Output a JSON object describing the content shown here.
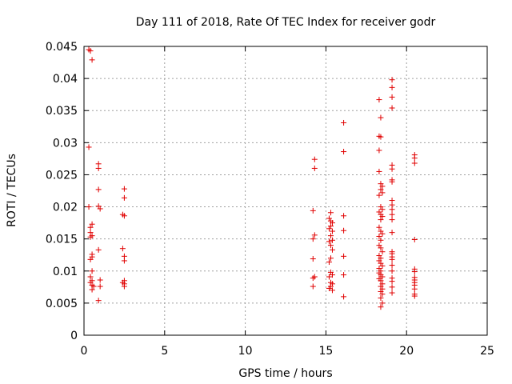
{
  "chart_data": {
    "type": "scatter",
    "title": "Day 111 of 2018, Rate Of TEC Index for receiver godr",
    "xlabel": "GPS time / hours",
    "ylabel": "ROTI / TECUs",
    "xlim": [
      0,
      25
    ],
    "ylim": [
      0,
      0.045
    ],
    "xticks": [
      0,
      5,
      10,
      15,
      20,
      25
    ],
    "xtick_labels": [
      "0",
      "5",
      "10",
      "15",
      "20",
      "25"
    ],
    "yticks": [
      0,
      0.005,
      0.01,
      0.015,
      0.02,
      0.025,
      0.03,
      0.035,
      0.04,
      0.045
    ],
    "ytick_labels": [
      "0",
      "0.005",
      "0.01",
      "0.015",
      "0.02",
      "0.025",
      "0.03",
      "0.035",
      "0.04",
      "0.045"
    ],
    "grid": true,
    "marker": "+",
    "color": "#e00000",
    "series": [
      {
        "name": "ROTI",
        "points": [
          [
            0.3,
            0.0445
          ],
          [
            0.4,
            0.0443
          ],
          [
            0.5,
            0.0429
          ],
          [
            0.3,
            0.0293
          ],
          [
            0.3,
            0.02
          ],
          [
            0.4,
            0.0168
          ],
          [
            0.4,
            0.016
          ],
          [
            0.5,
            0.0173
          ],
          [
            0.5,
            0.0155
          ],
          [
            0.4,
            0.0153
          ],
          [
            0.5,
            0.0126
          ],
          [
            0.5,
            0.0122
          ],
          [
            0.4,
            0.0118
          ],
          [
            0.5,
            0.01
          ],
          [
            0.4,
            0.0091
          ],
          [
            0.5,
            0.0085
          ],
          [
            0.4,
            0.0082
          ],
          [
            0.5,
            0.0078
          ],
          [
            0.6,
            0.0076
          ],
          [
            0.5,
            0.0071
          ],
          [
            0.9,
            0.0267
          ],
          [
            0.9,
            0.026
          ],
          [
            0.9,
            0.0227
          ],
          [
            0.9,
            0.0201
          ],
          [
            1.0,
            0.0197
          ],
          [
            0.9,
            0.0133
          ],
          [
            1.0,
            0.0086
          ],
          [
            1.0,
            0.0076
          ],
          [
            0.9,
            0.0054
          ],
          [
            2.5,
            0.0228
          ],
          [
            2.5,
            0.0214
          ],
          [
            2.4,
            0.0188
          ],
          [
            2.5,
            0.0186
          ],
          [
            2.4,
            0.0135
          ],
          [
            2.5,
            0.0123
          ],
          [
            2.5,
            0.0116
          ],
          [
            2.5,
            0.0085
          ],
          [
            2.4,
            0.0082
          ],
          [
            2.5,
            0.008
          ],
          [
            2.5,
            0.0076
          ],
          [
            14.3,
            0.0274
          ],
          [
            14.3,
            0.026
          ],
          [
            14.2,
            0.0194
          ],
          [
            14.3,
            0.0156
          ],
          [
            14.2,
            0.015
          ],
          [
            14.2,
            0.0119
          ],
          [
            14.3,
            0.0091
          ],
          [
            14.2,
            0.0089
          ],
          [
            14.2,
            0.0076
          ],
          [
            15.3,
            0.0191
          ],
          [
            15.2,
            0.0182
          ],
          [
            15.3,
            0.0178
          ],
          [
            15.4,
            0.0175
          ],
          [
            15.3,
            0.017
          ],
          [
            15.2,
            0.0166
          ],
          [
            15.4,
            0.0162
          ],
          [
            15.3,
            0.0155
          ],
          [
            15.4,
            0.0148
          ],
          [
            15.2,
            0.0146
          ],
          [
            15.3,
            0.014
          ],
          [
            15.4,
            0.0133
          ],
          [
            15.3,
            0.012
          ],
          [
            15.2,
            0.0114
          ],
          [
            15.3,
            0.0098
          ],
          [
            15.4,
            0.0094
          ],
          [
            15.2,
            0.0091
          ],
          [
            15.3,
            0.0082
          ],
          [
            15.4,
            0.008
          ],
          [
            15.3,
            0.0076
          ],
          [
            15.2,
            0.0073
          ],
          [
            15.4,
            0.007
          ],
          [
            16.1,
            0.0331
          ],
          [
            16.1,
            0.0286
          ],
          [
            16.1,
            0.0186
          ],
          [
            16.1,
            0.0163
          ],
          [
            16.1,
            0.0123
          ],
          [
            16.1,
            0.0094
          ],
          [
            16.1,
            0.006
          ],
          [
            18.3,
            0.0367
          ],
          [
            18.4,
            0.0339
          ],
          [
            18.3,
            0.031
          ],
          [
            18.4,
            0.0309
          ],
          [
            18.3,
            0.0288
          ],
          [
            18.3,
            0.0255
          ],
          [
            18.4,
            0.0236
          ],
          [
            18.5,
            0.0232
          ],
          [
            18.4,
            0.0227
          ],
          [
            18.5,
            0.0222
          ],
          [
            18.3,
            0.0218
          ],
          [
            18.4,
            0.02
          ],
          [
            18.5,
            0.0196
          ],
          [
            18.3,
            0.0192
          ],
          [
            18.4,
            0.0188
          ],
          [
            18.5,
            0.0185
          ],
          [
            18.4,
            0.018
          ],
          [
            18.3,
            0.0168
          ],
          [
            18.4,
            0.0162
          ],
          [
            18.5,
            0.0158
          ],
          [
            18.3,
            0.0154
          ],
          [
            18.4,
            0.0148
          ],
          [
            18.3,
            0.014
          ],
          [
            18.4,
            0.0136
          ],
          [
            18.5,
            0.013
          ],
          [
            18.3,
            0.0124
          ],
          [
            18.4,
            0.012
          ],
          [
            18.3,
            0.0116
          ],
          [
            18.4,
            0.0112
          ],
          [
            18.5,
            0.0108
          ],
          [
            18.3,
            0.0104
          ],
          [
            18.4,
            0.01
          ],
          [
            18.3,
            0.0097
          ],
          [
            18.4,
            0.0094
          ],
          [
            18.5,
            0.0091
          ],
          [
            18.3,
            0.0088
          ],
          [
            18.4,
            0.0085
          ],
          [
            18.5,
            0.008
          ],
          [
            18.4,
            0.0076
          ],
          [
            18.5,
            0.0072
          ],
          [
            18.4,
            0.0068
          ],
          [
            18.5,
            0.0064
          ],
          [
            18.4,
            0.0058
          ],
          [
            18.5,
            0.005
          ],
          [
            18.4,
            0.0044
          ],
          [
            19.1,
            0.0398
          ],
          [
            19.1,
            0.0386
          ],
          [
            19.1,
            0.0371
          ],
          [
            19.1,
            0.0354
          ],
          [
            19.1,
            0.0265
          ],
          [
            19.1,
            0.0259
          ],
          [
            19.1,
            0.0242
          ],
          [
            19.1,
            0.0239
          ],
          [
            19.1,
            0.021
          ],
          [
            19.1,
            0.0203
          ],
          [
            19.1,
            0.0196
          ],
          [
            19.1,
            0.0188
          ],
          [
            19.1,
            0.018
          ],
          [
            19.1,
            0.016
          ],
          [
            19.1,
            0.013
          ],
          [
            19.1,
            0.0127
          ],
          [
            19.1,
            0.0122
          ],
          [
            19.1,
            0.0118
          ],
          [
            19.1,
            0.0109
          ],
          [
            19.1,
            0.01
          ],
          [
            19.1,
            0.0089
          ],
          [
            19.1,
            0.0084
          ],
          [
            19.1,
            0.0075
          ],
          [
            19.1,
            0.0066
          ],
          [
            20.5,
            0.0281
          ],
          [
            20.5,
            0.0276
          ],
          [
            20.5,
            0.0268
          ],
          [
            20.5,
            0.0149
          ],
          [
            20.5,
            0.0103
          ],
          [
            20.5,
            0.0099
          ],
          [
            20.5,
            0.009
          ],
          [
            20.5,
            0.0086
          ],
          [
            20.5,
            0.0082
          ],
          [
            20.5,
            0.0078
          ],
          [
            20.5,
            0.0072
          ],
          [
            20.5,
            0.0064
          ],
          [
            20.5,
            0.0061
          ]
        ]
      }
    ]
  }
}
